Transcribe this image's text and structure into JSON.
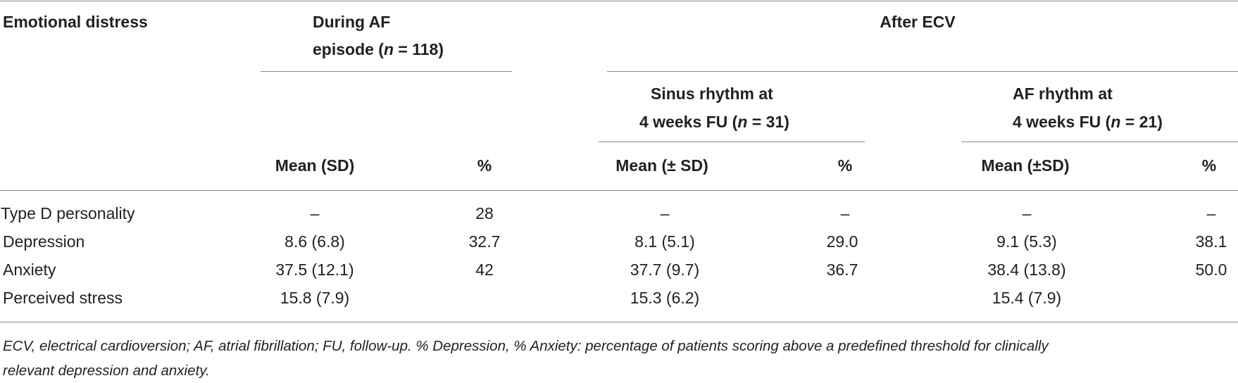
{
  "header": {
    "row_label": "Emotional distress",
    "during_af_line1": "During AF",
    "during_af_line2_prefix": "episode (",
    "during_af_n": "n",
    "during_af_line2_suffix": " = 118)",
    "after_ecv": "After ECV",
    "sinus_line1": "Sinus rhythm at",
    "sinus_line2_prefix": "4 weeks FU (",
    "sinus_n": "n",
    "sinus_line2_suffix": " = 31)",
    "af_rhythm_line1": "AF rhythm at",
    "af_rhythm_line2_prefix": "4 weeks FU (",
    "af_rhythm_n": "n",
    "af_rhythm_line2_suffix": " = 21)",
    "col_mean_sd": "Mean (SD)",
    "col_pct_1": "%",
    "col_mean_pm_sd_1": "Mean (± SD)",
    "col_pct_2": "%",
    "col_mean_pm_sd_2": "Mean (±SD)",
    "col_pct_3": "%"
  },
  "rows": [
    {
      "label": "Type D personality",
      "c1": "–",
      "c2": "28",
      "c3": "–",
      "c4": "–",
      "c5": "–",
      "c6": "–"
    },
    {
      "label": "Depression",
      "c1": "8.6 (6.8)",
      "c2": "32.7",
      "c3": "8.1 (5.1)",
      "c4": "29.0",
      "c5": "9.1 (5.3)",
      "c6": "38.1"
    },
    {
      "label": "Anxiety",
      "c1": "37.5 (12.1)",
      "c2": "42",
      "c3": "37.7 (9.7)",
      "c4": "36.7",
      "c5": "38.4 (13.8)",
      "c6": "50.0"
    },
    {
      "label": "Perceived stress",
      "c1": "15.8 (7.9)",
      "c2": "",
      "c3": "15.3 (6.2)",
      "c4": "",
      "c5": "15.4 (7.9)",
      "c6": ""
    }
  ],
  "footnote": {
    "line1": "ECV, electrical cardioversion; AF, atrial fibrillation; FU, follow-up. % Depression, % Anxiety: percentage of patients scoring above a predefined threshold for clinically",
    "line2": "relevant depression and anxiety."
  }
}
